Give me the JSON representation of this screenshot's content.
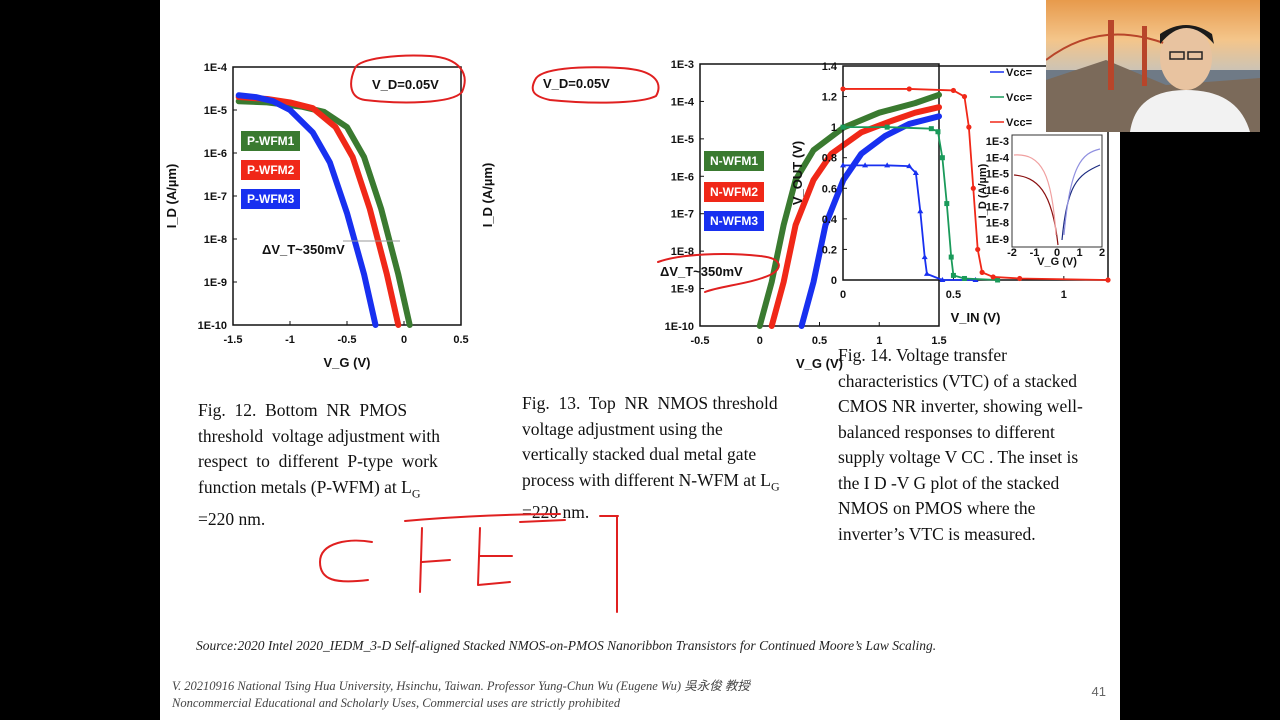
{
  "chart_data": [
    {
      "type": "line",
      "title": "",
      "xlabel": "V_G (V)",
      "ylabel": "I_D (A/µm)",
      "log_y": true,
      "xlim": [
        -1.5,
        0.5
      ],
      "ylim": [
        1e-10,
        0.0001
      ],
      "x_ticks": [
        "-1.5",
        "-1",
        "-0.5",
        "0",
        "0.5"
      ],
      "y_ticks": [
        "1E-10",
        "1E-9",
        "1E-8",
        "1E-7",
        "1E-6",
        "1E-5",
        "1E-4"
      ],
      "series": [
        {
          "name": "P-WFM1",
          "color": "#3a7a30",
          "points": [
            [
              -1.45,
              1.6e-05
            ],
            [
              -1.2,
              1.5e-05
            ],
            [
              -0.9,
              1.2e-05
            ],
            [
              -0.7,
              9e-06
            ],
            [
              -0.5,
              4e-06
            ],
            [
              -0.35,
              8e-07
            ],
            [
              -0.2,
              5e-08
            ],
            [
              -0.05,
              1.5e-09
            ],
            [
              0.05,
              1e-10
            ]
          ]
        },
        {
          "name": "P-WFM2",
          "color": "#f02818",
          "points": [
            [
              -1.45,
              2e-05
            ],
            [
              -1.2,
              1.8e-05
            ],
            [
              -1.0,
              1.5e-05
            ],
            [
              -0.8,
              1.1e-05
            ],
            [
              -0.6,
              4e-06
            ],
            [
              -0.45,
              8e-07
            ],
            [
              -0.3,
              5e-08
            ],
            [
              -0.15,
              1.5e-09
            ],
            [
              -0.05,
              1e-10
            ]
          ]
        },
        {
          "name": "P-WFM3",
          "color": "#1830f0",
          "points": [
            [
              -1.45,
              2.2e-05
            ],
            [
              -1.3,
              2e-05
            ],
            [
              -1.15,
              1.6e-05
            ],
            [
              -1.0,
              1e-05
            ],
            [
              -0.8,
              3e-06
            ],
            [
              -0.65,
              6e-07
            ],
            [
              -0.5,
              4e-08
            ],
            [
              -0.35,
              1.5e-09
            ],
            [
              -0.25,
              1e-10
            ]
          ]
        }
      ],
      "annotations": [
        "V_D=0.05V",
        "ΔV_T~350mV"
      ]
    },
    {
      "type": "line",
      "title": "",
      "xlabel": "V_G (V)",
      "ylabel": "I_D (A/µm)",
      "log_y": true,
      "xlim": [
        -0.5,
        1.5
      ],
      "ylim": [
        1e-10,
        0.001
      ],
      "x_ticks": [
        "-0.5",
        "0",
        "0.5",
        "1",
        "1.5"
      ],
      "y_ticks": [
        "1E-10",
        "1E-9",
        "1E-8",
        "1E-7",
        "1E-6",
        "1E-5",
        "1E-4",
        "1E-3"
      ],
      "series": [
        {
          "name": "N-WFM1",
          "color": "#3a7a30",
          "points": [
            [
              0.0,
              1e-10
            ],
            [
              0.1,
              1.5e-09
            ],
            [
              0.2,
              5e-08
            ],
            [
              0.3,
              8e-07
            ],
            [
              0.45,
              5e-06
            ],
            [
              0.7,
              2e-05
            ],
            [
              1.0,
              5e-05
            ],
            [
              1.3,
              9e-05
            ],
            [
              1.5,
              0.00015
            ]
          ]
        },
        {
          "name": "N-WFM2",
          "color": "#f02818",
          "points": [
            [
              0.1,
              1e-10
            ],
            [
              0.2,
              1.5e-09
            ],
            [
              0.3,
              5e-08
            ],
            [
              0.45,
              8e-07
            ],
            [
              0.6,
              4e-06
            ],
            [
              0.85,
              1.5e-05
            ],
            [
              1.1,
              3e-05
            ],
            [
              1.3,
              5e-05
            ],
            [
              1.5,
              7e-05
            ]
          ]
        },
        {
          "name": "N-WFM3",
          "color": "#1830f0",
          "points": [
            [
              0.35,
              1e-10
            ],
            [
              0.45,
              1.5e-09
            ],
            [
              0.55,
              5e-08
            ],
            [
              0.7,
              8e-07
            ],
            [
              0.85,
              4e-06
            ],
            [
              1.05,
              1.2e-05
            ],
            [
              1.25,
              2.5e-05
            ],
            [
              1.5,
              4e-05
            ]
          ]
        }
      ],
      "annotations": [
        "V_D=0.05V",
        "ΔV_T~350mV"
      ]
    },
    {
      "type": "line",
      "title": "",
      "xlabel": "V_IN (V)",
      "ylabel": "V_OUT (V)",
      "xlim": [
        0,
        1.2
      ],
      "ylim": [
        0,
        1.4
      ],
      "x_ticks": [
        "0",
        "0.5",
        "1"
      ],
      "y_ticks": [
        "0",
        "0.2",
        "0.4",
        "0.6",
        "0.8",
        "1",
        "1.2",
        "1.4"
      ],
      "series": [
        {
          "name": "Vcc=",
          "color": "#1830f0",
          "points": [
            [
              0.0,
              0.75
            ],
            [
              0.1,
              0.75
            ],
            [
              0.2,
              0.75
            ],
            [
              0.3,
              0.745
            ],
            [
              0.33,
              0.7
            ],
            [
              0.35,
              0.45
            ],
            [
              0.37,
              0.15
            ],
            [
              0.38,
              0.04
            ],
            [
              0.45,
              0.0
            ],
            [
              0.6,
              0.0
            ]
          ]
        },
        {
          "name": "Vcc=",
          "color": "#1a9a5a",
          "points": [
            [
              0.0,
              1.0
            ],
            [
              0.2,
              1.0
            ],
            [
              0.4,
              0.99
            ],
            [
              0.43,
              0.97
            ],
            [
              0.45,
              0.8
            ],
            [
              0.47,
              0.5
            ],
            [
              0.49,
              0.15
            ],
            [
              0.5,
              0.03
            ],
            [
              0.55,
              0.01
            ],
            [
              0.7,
              0.0
            ]
          ]
        },
        {
          "name": "Vcc=",
          "color": "#f02818",
          "points": [
            [
              0.0,
              1.25
            ],
            [
              0.3,
              1.25
            ],
            [
              0.5,
              1.24
            ],
            [
              0.55,
              1.2
            ],
            [
              0.57,
              1.0
            ],
            [
              0.59,
              0.6
            ],
            [
              0.61,
              0.2
            ],
            [
              0.63,
              0.05
            ],
            [
              0.68,
              0.02
            ],
            [
              0.8,
              0.01
            ],
            [
              1.2,
              0.0
            ]
          ]
        }
      ],
      "inset": {
        "xlabel": "V_G (V)",
        "ylabel": "I_D (A/µm)",
        "x_ticks": [
          "-2",
          "-1",
          "0",
          "1",
          "2"
        ],
        "y_ticks": [
          "1E-3",
          "1E-4",
          "1E-5",
          "1E-6",
          "1E-7",
          "1E-8",
          "1E-9"
        ]
      }
    }
  ],
  "legend_fig12": [
    "P-WFM1",
    "P-WFM2",
    "P-WFM3"
  ],
  "legend_fig13": [
    "N-WFM1",
    "N-WFM2",
    "N-WFM3"
  ],
  "legend_fig14": [
    "Vcc=",
    "Vcc=",
    "Vcc="
  ],
  "annot_vd": "V_D=0.05V",
  "annot_dvt": "ΔV_T~350mV",
  "captions": {
    "fig12": "Fig. 12. Bottom NR PMOS threshold voltage adjustment with respect to different P-type work function metals (P-WFM) at L_G =220 nm.",
    "fig13": "Fig. 13. Top NR NMOS threshold voltage adjustment using the vertically stacked dual metal gate process with different N-WFM at L_G =220 nm.",
    "fig14": "Fig. 14. Voltage transfer characteristics (VTC) of a stacked CMOS NR inverter, showing well-balanced responses to different supply voltage V CC . The inset is the I D -V G plot of the stacked NMOS on PMOS where the inverter’s VTC is measured."
  },
  "source": "Source:2020 Intel 2020_IEDM_3-D Self-aligned Stacked NMOS-on-PMOS Nanoribbon Transistors for Continued Moore’s Law Scaling.",
  "footer_line1": "V. 20210916 National Tsing Hua University, Hsinchu, Taiwan. Professor Yung-Chun Wu (Eugene Wu) 吳永俊 教授",
  "footer_line2": "Noncommercial Educational and Scholarly Uses, Commercial uses are strictly prohibited",
  "page_number": "41",
  "handwriting": "CFET",
  "colors": {
    "green": "#3a7a30",
    "red": "#f02818",
    "blue": "#1830f0",
    "teal": "#1a9a5a",
    "ink": "#e02020"
  }
}
